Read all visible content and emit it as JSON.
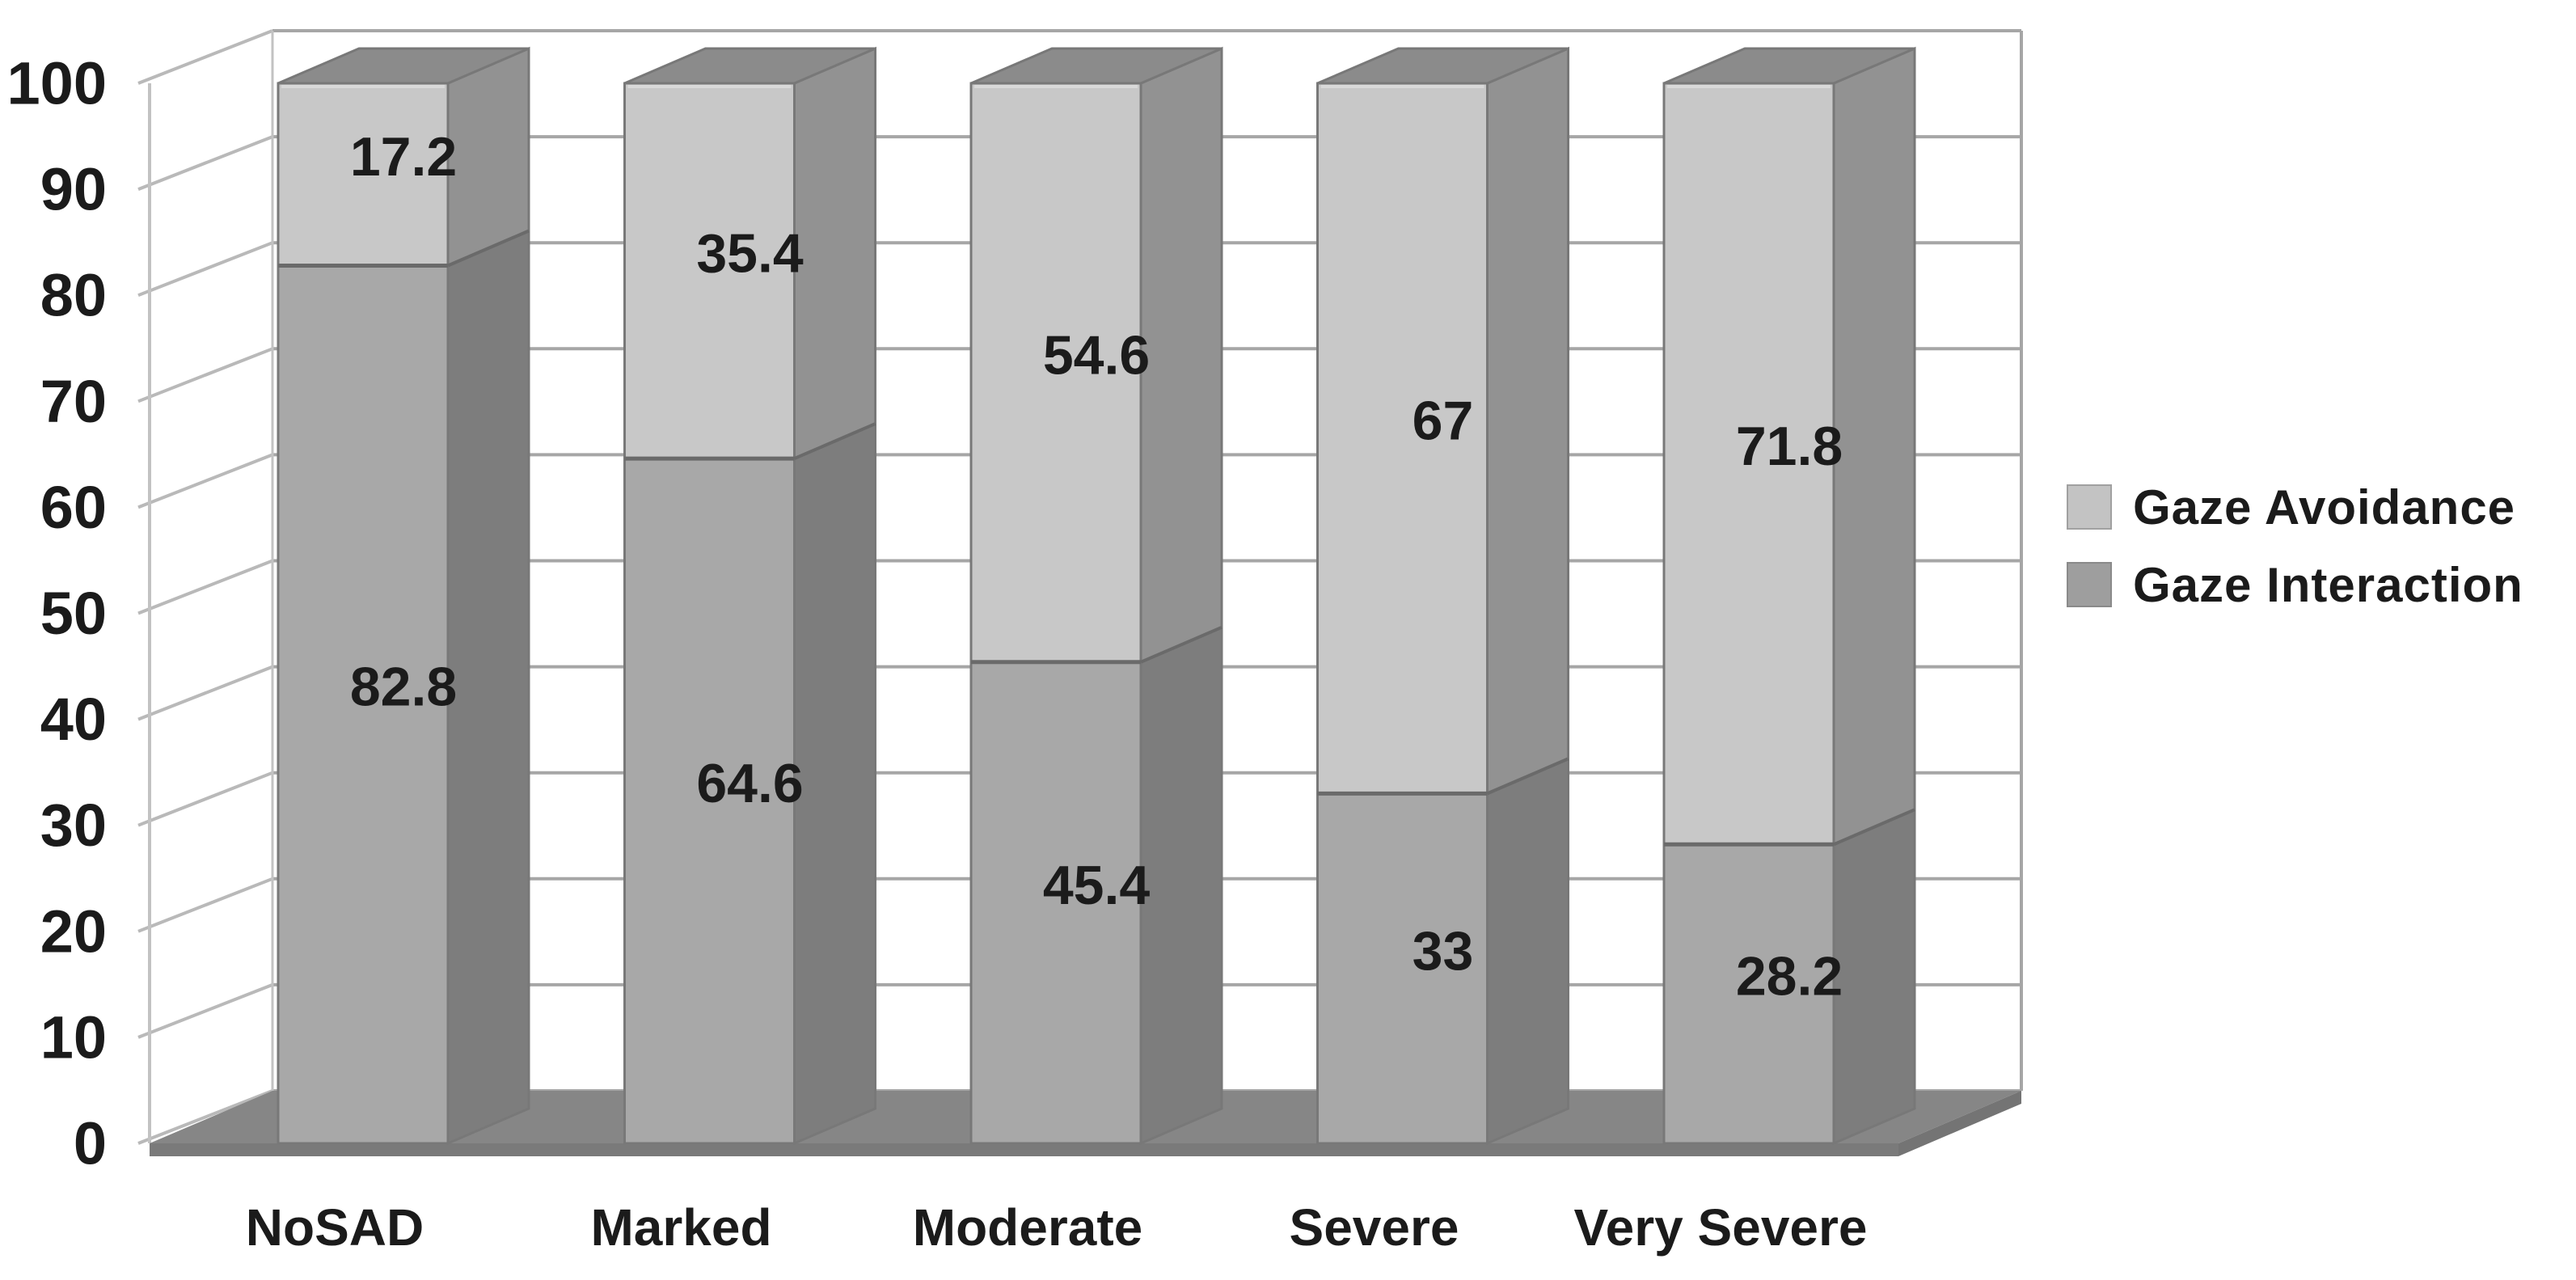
{
  "chart_data": {
    "type": "bar",
    "subtype": "stacked-3d-column",
    "title": "",
    "xlabel": "",
    "ylabel": "",
    "categories": [
      "NoSAD",
      "Marked",
      "Moderate",
      "Severe",
      "Very Severe"
    ],
    "series": [
      {
        "name": "Gaze Avoidance",
        "values": [
          17.2,
          35.4,
          54.6,
          67,
          71.8
        ],
        "labels": [
          "17.2",
          "35.4",
          "54.6",
          "67",
          "71.8"
        ],
        "front_color": "#c8c8c8",
        "side_color": "#929292",
        "top_color": "#8b8b8b",
        "legend_swatch_color": "#c3c3c3"
      },
      {
        "name": "Gaze Interaction",
        "values": [
          82.8,
          64.6,
          45.4,
          33,
          28.2
        ],
        "labels": [
          "82.8",
          "64.6",
          "45.4",
          "33",
          "28.2"
        ],
        "front_color": "#a8a8a8",
        "side_color": "#7d7d7d",
        "legend_swatch_color": "#9e9e9e"
      }
    ],
    "ylim": [
      0,
      100
    ],
    "ytick_step": 10,
    "yticks": [
      "0",
      "10",
      "20",
      "30",
      "40",
      "50",
      "60",
      "70",
      "80",
      "90",
      "100"
    ],
    "grid": true,
    "legend_position": "right",
    "colors": {
      "background": "#ffffff",
      "wall_fill": "#ffffff",
      "back_gridline": "#a6a6a6",
      "side_gridline": "#b9b9b9",
      "wall_edge": "#c2c2c2",
      "floor_top": "#868686",
      "floor_front": "#7a7a7a",
      "floor_right": "#747474",
      "segment_outline": "#787878",
      "junction_line": "#6a6a6a",
      "top_highlight": "#d9d9d9",
      "text": "#1b1b1b"
    }
  },
  "legend": {
    "items": [
      {
        "label": "Gaze Avoidance"
      },
      {
        "label": "Gaze Interaction"
      }
    ]
  }
}
